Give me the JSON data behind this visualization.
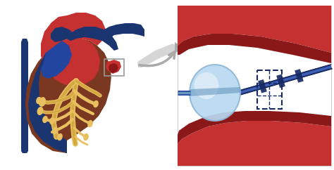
{
  "bg": "#ffffff",
  "heart_red": "#C53030",
  "heart_dark_red": "#8B1818",
  "heart_brown": "#7B3820",
  "heart_blue_dark": "#1A3570",
  "heart_blue_mid": "#2245A0",
  "heart_yellow": "#E8C060",
  "heart_yellow2": "#D4A840",
  "vein_red": "#C53030",
  "vein_dark_red": "#8B1818",
  "vein_bright_red": "#E03030",
  "balloon_blue": "#B8D8F0",
  "balloon_blue2": "#90B8D8",
  "balloon_blue3": "#6898C0",
  "catheter_blue": "#2245A0",
  "catheter_dark": "#152860",
  "arrow_gray": "#AAAAAA",
  "arrow_gray2": "#CCCCCC",
  "box_gray": "#999999"
}
